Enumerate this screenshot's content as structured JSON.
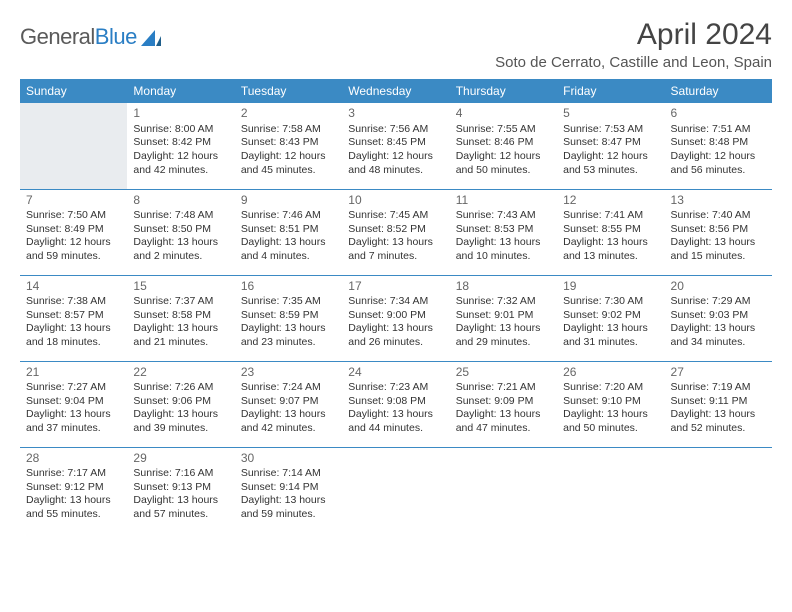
{
  "brand": {
    "part1": "General",
    "part2": "Blue"
  },
  "colors": {
    "header_bg": "#3b8ac4",
    "header_text": "#ffffff",
    "border": "#3b8ac4",
    "blank_bg": "#e9ecef",
    "logo_gray": "#5a5a5a",
    "logo_blue": "#2a7ec4",
    "body_text": "#333333"
  },
  "title": "April 2024",
  "location": "Soto de Cerrato, Castille and Leon, Spain",
  "weekdays": [
    "Sunday",
    "Monday",
    "Tuesday",
    "Wednesday",
    "Thursday",
    "Friday",
    "Saturday"
  ],
  "cells": [
    {
      "blank": true,
      "top": true
    },
    {
      "day": "1",
      "sunrise": "Sunrise: 8:00 AM",
      "sunset": "Sunset: 8:42 PM",
      "daylight": "Daylight: 12 hours and 42 minutes."
    },
    {
      "day": "2",
      "sunrise": "Sunrise: 7:58 AM",
      "sunset": "Sunset: 8:43 PM",
      "daylight": "Daylight: 12 hours and 45 minutes."
    },
    {
      "day": "3",
      "sunrise": "Sunrise: 7:56 AM",
      "sunset": "Sunset: 8:45 PM",
      "daylight": "Daylight: 12 hours and 48 minutes."
    },
    {
      "day": "4",
      "sunrise": "Sunrise: 7:55 AM",
      "sunset": "Sunset: 8:46 PM",
      "daylight": "Daylight: 12 hours and 50 minutes."
    },
    {
      "day": "5",
      "sunrise": "Sunrise: 7:53 AM",
      "sunset": "Sunset: 8:47 PM",
      "daylight": "Daylight: 12 hours and 53 minutes."
    },
    {
      "day": "6",
      "sunrise": "Sunrise: 7:51 AM",
      "sunset": "Sunset: 8:48 PM",
      "daylight": "Daylight: 12 hours and 56 minutes."
    },
    {
      "day": "7",
      "sunrise": "Sunrise: 7:50 AM",
      "sunset": "Sunset: 8:49 PM",
      "daylight": "Daylight: 12 hours and 59 minutes."
    },
    {
      "day": "8",
      "sunrise": "Sunrise: 7:48 AM",
      "sunset": "Sunset: 8:50 PM",
      "daylight": "Daylight: 13 hours and 2 minutes."
    },
    {
      "day": "9",
      "sunrise": "Sunrise: 7:46 AM",
      "sunset": "Sunset: 8:51 PM",
      "daylight": "Daylight: 13 hours and 4 minutes."
    },
    {
      "day": "10",
      "sunrise": "Sunrise: 7:45 AM",
      "sunset": "Sunset: 8:52 PM",
      "daylight": "Daylight: 13 hours and 7 minutes."
    },
    {
      "day": "11",
      "sunrise": "Sunrise: 7:43 AM",
      "sunset": "Sunset: 8:53 PM",
      "daylight": "Daylight: 13 hours and 10 minutes."
    },
    {
      "day": "12",
      "sunrise": "Sunrise: 7:41 AM",
      "sunset": "Sunset: 8:55 PM",
      "daylight": "Daylight: 13 hours and 13 minutes."
    },
    {
      "day": "13",
      "sunrise": "Sunrise: 7:40 AM",
      "sunset": "Sunset: 8:56 PM",
      "daylight": "Daylight: 13 hours and 15 minutes."
    },
    {
      "day": "14",
      "sunrise": "Sunrise: 7:38 AM",
      "sunset": "Sunset: 8:57 PM",
      "daylight": "Daylight: 13 hours and 18 minutes."
    },
    {
      "day": "15",
      "sunrise": "Sunrise: 7:37 AM",
      "sunset": "Sunset: 8:58 PM",
      "daylight": "Daylight: 13 hours and 21 minutes."
    },
    {
      "day": "16",
      "sunrise": "Sunrise: 7:35 AM",
      "sunset": "Sunset: 8:59 PM",
      "daylight": "Daylight: 13 hours and 23 minutes."
    },
    {
      "day": "17",
      "sunrise": "Sunrise: 7:34 AM",
      "sunset": "Sunset: 9:00 PM",
      "daylight": "Daylight: 13 hours and 26 minutes."
    },
    {
      "day": "18",
      "sunrise": "Sunrise: 7:32 AM",
      "sunset": "Sunset: 9:01 PM",
      "daylight": "Daylight: 13 hours and 29 minutes."
    },
    {
      "day": "19",
      "sunrise": "Sunrise: 7:30 AM",
      "sunset": "Sunset: 9:02 PM",
      "daylight": "Daylight: 13 hours and 31 minutes."
    },
    {
      "day": "20",
      "sunrise": "Sunrise: 7:29 AM",
      "sunset": "Sunset: 9:03 PM",
      "daylight": "Daylight: 13 hours and 34 minutes."
    },
    {
      "day": "21",
      "sunrise": "Sunrise: 7:27 AM",
      "sunset": "Sunset: 9:04 PM",
      "daylight": "Daylight: 13 hours and 37 minutes."
    },
    {
      "day": "22",
      "sunrise": "Sunrise: 7:26 AM",
      "sunset": "Sunset: 9:06 PM",
      "daylight": "Daylight: 13 hours and 39 minutes."
    },
    {
      "day": "23",
      "sunrise": "Sunrise: 7:24 AM",
      "sunset": "Sunset: 9:07 PM",
      "daylight": "Daylight: 13 hours and 42 minutes."
    },
    {
      "day": "24",
      "sunrise": "Sunrise: 7:23 AM",
      "sunset": "Sunset: 9:08 PM",
      "daylight": "Daylight: 13 hours and 44 minutes."
    },
    {
      "day": "25",
      "sunrise": "Sunrise: 7:21 AM",
      "sunset": "Sunset: 9:09 PM",
      "daylight": "Daylight: 13 hours and 47 minutes."
    },
    {
      "day": "26",
      "sunrise": "Sunrise: 7:20 AM",
      "sunset": "Sunset: 9:10 PM",
      "daylight": "Daylight: 13 hours and 50 minutes."
    },
    {
      "day": "27",
      "sunrise": "Sunrise: 7:19 AM",
      "sunset": "Sunset: 9:11 PM",
      "daylight": "Daylight: 13 hours and 52 minutes."
    },
    {
      "day": "28",
      "sunrise": "Sunrise: 7:17 AM",
      "sunset": "Sunset: 9:12 PM",
      "daylight": "Daylight: 13 hours and 55 minutes."
    },
    {
      "day": "29",
      "sunrise": "Sunrise: 7:16 AM",
      "sunset": "Sunset: 9:13 PM",
      "daylight": "Daylight: 13 hours and 57 minutes."
    },
    {
      "day": "30",
      "sunrise": "Sunrise: 7:14 AM",
      "sunset": "Sunset: 9:14 PM",
      "daylight": "Daylight: 13 hours and 59 minutes."
    },
    {
      "blank": true
    },
    {
      "blank": true
    },
    {
      "blank": true
    },
    {
      "blank": true
    }
  ]
}
